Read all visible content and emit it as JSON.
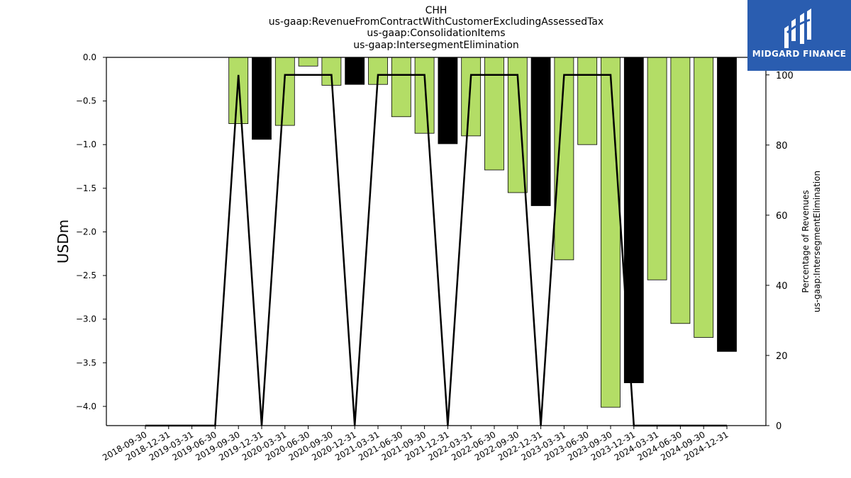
{
  "chart_data": {
    "type": "bar",
    "title_lines": [
      "CHH",
      "us-gaap:RevenueFromContractWithCustomerExcludingAssessedTax",
      "us-gaap:ConsolidationItems",
      "us-gaap:IntersegmentElimination"
    ],
    "ylabel": "USDm",
    "ylabel_right": [
      "Percentage of Revenues",
      "us-gaap:IntersegmentElimination"
    ],
    "categories": [
      "2018-09-30",
      "2018-12-31",
      "2019-03-31",
      "2019-06-30",
      "2019-09-30",
      "2019-12-31",
      "2020-03-31",
      "2020-06-30",
      "2020-09-30",
      "2020-12-31",
      "2021-03-31",
      "2021-06-30",
      "2021-09-30",
      "2021-12-31",
      "2022-03-31",
      "2022-06-30",
      "2022-09-30",
      "2022-12-31",
      "2023-03-31",
      "2023-06-30",
      "2023-09-30",
      "2023-12-31",
      "2024-03-31",
      "2024-06-30",
      "2024-09-30",
      "2024-12-31"
    ],
    "series": [
      {
        "type": "bar",
        "axis": "left",
        "values": [
          null,
          null,
          null,
          null,
          -0.76,
          -0.94,
          -0.78,
          -0.1,
          -0.32,
          -0.31,
          -0.31,
          -0.68,
          -0.87,
          -0.99,
          -0.9,
          -1.29,
          -1.55,
          -1.7,
          -2.32,
          -1.0,
          -4.01,
          -3.73,
          -2.55,
          -3.05,
          -3.21,
          -3.37
        ],
        "colors": [
          "#b3dd66",
          "#b3dd66",
          "#b3dd66",
          "#b3dd66",
          "#b3dd66",
          "#000000",
          "#b3dd66",
          "#b3dd66",
          "#b3dd66",
          "#000000",
          "#b3dd66",
          "#b3dd66",
          "#b3dd66",
          "#000000",
          "#b3dd66",
          "#b3dd66",
          "#b3dd66",
          "#000000",
          "#b3dd66",
          "#b3dd66",
          "#b3dd66",
          "#000000",
          "#b3dd66",
          "#b3dd66",
          "#b3dd66",
          "#000000"
        ]
      },
      {
        "type": "line",
        "axis": "right",
        "values": [
          0,
          0,
          0,
          0,
          100,
          0,
          100,
          100,
          100,
          0,
          100,
          100,
          100,
          0,
          100,
          100,
          100,
          0,
          100,
          100,
          100,
          0,
          0,
          0,
          0,
          0
        ],
        "color": "#000000"
      }
    ],
    "ylim": [
      -4.22,
      0.0
    ],
    "yticks": [
      "0.0",
      "−0.5",
      "−1.0",
      "−1.5",
      "−2.0",
      "−2.5",
      "−3.0",
      "−3.5",
      "−4.0"
    ],
    "ylim_right": [
      0,
      105
    ],
    "yticks_right": [
      "0",
      "20",
      "40",
      "60",
      "80",
      "100"
    ],
    "grid": false
  },
  "logo": {
    "text": "MIDGARD FINANCE"
  }
}
